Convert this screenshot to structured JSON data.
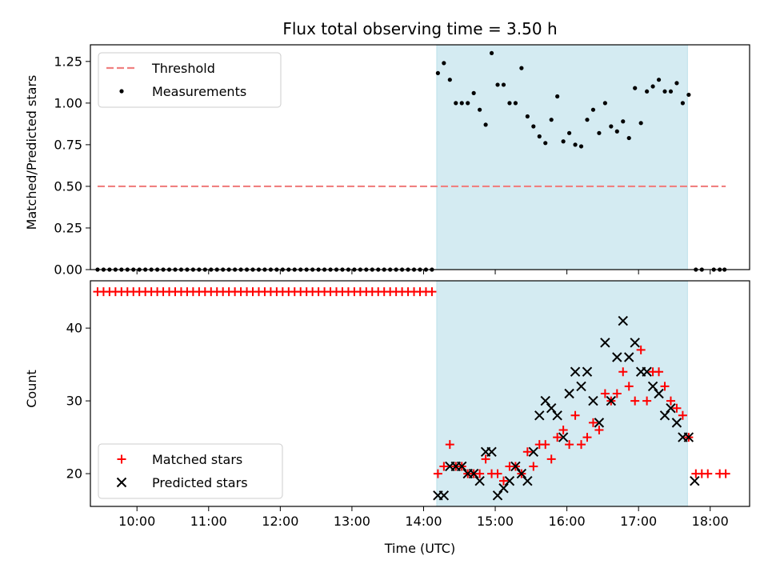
{
  "figure": {
    "title": "Flux total observing time = 3.50 h",
    "xlabel": "Time (UTC)",
    "x_ticks": [
      "10:00",
      "11:00",
      "12:00",
      "13:00",
      "14:00",
      "15:00",
      "16:00",
      "17:00",
      "18:00"
    ]
  },
  "chart_data": [
    {
      "type": "scatter",
      "panel": "top",
      "ylabel": "Matched/Predicted stars",
      "xlim": [
        "09:21",
        "18:33"
      ],
      "ylim": [
        0,
        1.35
      ],
      "y_ticks": [
        "0.00",
        "0.25",
        "0.50",
        "0.75",
        "1.00",
        "1.25"
      ],
      "shaded_region": [
        "14:11",
        "17:41"
      ],
      "legend": {
        "placement": "upper-left",
        "entries": [
          "Threshold",
          "Measurements"
        ]
      },
      "series": [
        {
          "name": "Threshold",
          "kind": "dashed-line",
          "color": "#f08080",
          "points": [
            [
              "09:27",
              0.5
            ],
            [
              "18:13",
              0.5
            ]
          ]
        },
        {
          "name": "Measurements",
          "kind": "dots",
          "color": "#000000",
          "points": [
            [
              "09:27",
              0
            ],
            [
              "09:32",
              0
            ],
            [
              "09:37",
              0
            ],
            [
              "09:42",
              0
            ],
            [
              "09:47",
              0
            ],
            [
              "09:52",
              0
            ],
            [
              "09:57",
              0
            ],
            [
              "10:02",
              0
            ],
            [
              "10:07",
              0
            ],
            [
              "10:12",
              0
            ],
            [
              "10:17",
              0
            ],
            [
              "10:22",
              0
            ],
            [
              "10:27",
              0
            ],
            [
              "10:32",
              0
            ],
            [
              "10:37",
              0
            ],
            [
              "10:42",
              0
            ],
            [
              "10:47",
              0
            ],
            [
              "10:52",
              0
            ],
            [
              "10:57",
              0
            ],
            [
              "11:02",
              0
            ],
            [
              "11:07",
              0
            ],
            [
              "11:12",
              0
            ],
            [
              "11:17",
              0
            ],
            [
              "11:22",
              0
            ],
            [
              "11:27",
              0
            ],
            [
              "11:32",
              0
            ],
            [
              "11:37",
              0
            ],
            [
              "11:42",
              0
            ],
            [
              "11:47",
              0
            ],
            [
              "11:52",
              0
            ],
            [
              "11:57",
              0
            ],
            [
              "12:02",
              0
            ],
            [
              "12:07",
              0
            ],
            [
              "12:12",
              0
            ],
            [
              "12:17",
              0
            ],
            [
              "12:22",
              0
            ],
            [
              "12:27",
              0
            ],
            [
              "12:32",
              0
            ],
            [
              "12:37",
              0
            ],
            [
              "12:42",
              0
            ],
            [
              "12:47",
              0
            ],
            [
              "12:52",
              0
            ],
            [
              "12:57",
              0
            ],
            [
              "13:02",
              0
            ],
            [
              "13:07",
              0
            ],
            [
              "13:12",
              0
            ],
            [
              "13:17",
              0
            ],
            [
              "13:22",
              0
            ],
            [
              "13:27",
              0
            ],
            [
              "13:32",
              0
            ],
            [
              "13:37",
              0
            ],
            [
              "13:42",
              0
            ],
            [
              "13:47",
              0
            ],
            [
              "13:52",
              0
            ],
            [
              "13:57",
              0
            ],
            [
              "14:02",
              0
            ],
            [
              "14:07",
              0
            ],
            [
              "14:12",
              1.18
            ],
            [
              "14:17",
              1.24
            ],
            [
              "14:22",
              1.14
            ],
            [
              "14:27",
              1.0
            ],
            [
              "14:32",
              1.0
            ],
            [
              "14:37",
              1.0
            ],
            [
              "14:42",
              1.06
            ],
            [
              "14:47",
              0.96
            ],
            [
              "14:52",
              0.87
            ],
            [
              "14:57",
              1.3
            ],
            [
              "15:02",
              1.11
            ],
            [
              "15:07",
              1.11
            ],
            [
              "15:12",
              1.0
            ],
            [
              "15:17",
              1.0
            ],
            [
              "15:22",
              1.21
            ],
            [
              "15:27",
              0.92
            ],
            [
              "15:32",
              0.86
            ],
            [
              "15:37",
              0.8
            ],
            [
              "15:42",
              0.76
            ],
            [
              "15:47",
              0.9
            ],
            [
              "15:52",
              1.04
            ],
            [
              "15:57",
              0.77
            ],
            [
              "16:02",
              0.82
            ],
            [
              "16:07",
              0.75
            ],
            [
              "16:12",
              0.74
            ],
            [
              "16:17",
              0.9
            ],
            [
              "16:22",
              0.96
            ],
            [
              "16:27",
              0.82
            ],
            [
              "16:32",
              1.0
            ],
            [
              "16:37",
              0.86
            ],
            [
              "16:42",
              0.83
            ],
            [
              "16:47",
              0.89
            ],
            [
              "16:52",
              0.79
            ],
            [
              "16:57",
              1.09
            ],
            [
              "17:02",
              0.88
            ],
            [
              "17:07",
              1.07
            ],
            [
              "17:12",
              1.1
            ],
            [
              "17:17",
              1.14
            ],
            [
              "17:22",
              1.07
            ],
            [
              "17:27",
              1.07
            ],
            [
              "17:32",
              1.12
            ],
            [
              "17:37",
              1.0
            ],
            [
              "17:42",
              1.05
            ],
            [
              "17:48",
              0
            ],
            [
              "17:53",
              0
            ],
            [
              "18:03",
              0
            ],
            [
              "18:08",
              0
            ],
            [
              "18:12",
              0
            ]
          ]
        }
      ]
    },
    {
      "type": "scatter",
      "panel": "bottom",
      "ylabel": "Count",
      "xlim": [
        "09:21",
        "18:33"
      ],
      "ylim": [
        15.5,
        46.5
      ],
      "y_ticks": [
        "20",
        "30",
        "40"
      ],
      "shaded_region": [
        "14:11",
        "17:41"
      ],
      "legend": {
        "placement": "lower-left",
        "entries": [
          "Matched stars",
          "Predicted stars"
        ]
      },
      "series": [
        {
          "name": "Matched stars",
          "kind": "plus",
          "color": "#ff0000",
          "points": [
            [
              "09:27",
              45
            ],
            [
              "09:32",
              45
            ],
            [
              "09:37",
              45
            ],
            [
              "09:42",
              45
            ],
            [
              "09:47",
              45
            ],
            [
              "09:52",
              45
            ],
            [
              "09:57",
              45
            ],
            [
              "10:02",
              45
            ],
            [
              "10:07",
              45
            ],
            [
              "10:12",
              45
            ],
            [
              "10:17",
              45
            ],
            [
              "10:22",
              45
            ],
            [
              "10:27",
              45
            ],
            [
              "10:32",
              45
            ],
            [
              "10:37",
              45
            ],
            [
              "10:42",
              45
            ],
            [
              "10:47",
              45
            ],
            [
              "10:52",
              45
            ],
            [
              "10:57",
              45
            ],
            [
              "11:02",
              45
            ],
            [
              "11:07",
              45
            ],
            [
              "11:12",
              45
            ],
            [
              "11:17",
              45
            ],
            [
              "11:22",
              45
            ],
            [
              "11:27",
              45
            ],
            [
              "11:32",
              45
            ],
            [
              "11:37",
              45
            ],
            [
              "11:42",
              45
            ],
            [
              "11:47",
              45
            ],
            [
              "11:52",
              45
            ],
            [
              "11:57",
              45
            ],
            [
              "12:02",
              45
            ],
            [
              "12:07",
              45
            ],
            [
              "12:12",
              45
            ],
            [
              "12:17",
              45
            ],
            [
              "12:22",
              45
            ],
            [
              "12:27",
              45
            ],
            [
              "12:32",
              45
            ],
            [
              "12:37",
              45
            ],
            [
              "12:42",
              45
            ],
            [
              "12:47",
              45
            ],
            [
              "12:52",
              45
            ],
            [
              "12:57",
              45
            ],
            [
              "13:02",
              45
            ],
            [
              "13:07",
              45
            ],
            [
              "13:12",
              45
            ],
            [
              "13:17",
              45
            ],
            [
              "13:22",
              45
            ],
            [
              "13:27",
              45
            ],
            [
              "13:32",
              45
            ],
            [
              "13:37",
              45
            ],
            [
              "13:42",
              45
            ],
            [
              "13:47",
              45
            ],
            [
              "13:52",
              45
            ],
            [
              "13:57",
              45
            ],
            [
              "14:02",
              45
            ],
            [
              "14:07",
              45
            ],
            [
              "14:12",
              20
            ],
            [
              "14:17",
              21
            ],
            [
              "14:22",
              24
            ],
            [
              "14:27",
              21
            ],
            [
              "14:32",
              21
            ],
            [
              "14:37",
              20
            ],
            [
              "14:42",
              20
            ],
            [
              "14:47",
              20
            ],
            [
              "14:52",
              22
            ],
            [
              "14:57",
              20
            ],
            [
              "15:02",
              20
            ],
            [
              "15:07",
              19
            ],
            [
              "15:12",
              21
            ],
            [
              "15:17",
              21
            ],
            [
              "15:22",
              20
            ],
            [
              "15:27",
              23
            ],
            [
              "15:32",
              21
            ],
            [
              "15:37",
              24
            ],
            [
              "15:42",
              24
            ],
            [
              "15:47",
              22
            ],
            [
              "15:52",
              25
            ],
            [
              "15:57",
              26
            ],
            [
              "16:02",
              24
            ],
            [
              "16:07",
              28
            ],
            [
              "16:12",
              24
            ],
            [
              "16:17",
              25
            ],
            [
              "16:22",
              27
            ],
            [
              "16:27",
              26
            ],
            [
              "16:32",
              31
            ],
            [
              "16:37",
              30
            ],
            [
              "16:42",
              31
            ],
            [
              "16:47",
              34
            ],
            [
              "16:52",
              32
            ],
            [
              "16:57",
              30
            ],
            [
              "17:02",
              37
            ],
            [
              "17:07",
              30
            ],
            [
              "17:12",
              34
            ],
            [
              "17:17",
              34
            ],
            [
              "17:22",
              32
            ],
            [
              "17:27",
              30
            ],
            [
              "17:32",
              29
            ],
            [
              "17:37",
              28
            ],
            [
              "17:42",
              25
            ],
            [
              "17:48",
              20
            ],
            [
              "17:53",
              20
            ],
            [
              "17:58",
              20
            ],
            [
              "18:08",
              20
            ],
            [
              "18:13",
              20
            ]
          ]
        },
        {
          "name": "Predicted stars",
          "kind": "x",
          "color": "#000000",
          "points": [
            [
              "14:12",
              17
            ],
            [
              "14:17",
              17
            ],
            [
              "14:22",
              21
            ],
            [
              "14:27",
              21
            ],
            [
              "14:32",
              21
            ],
            [
              "14:37",
              20
            ],
            [
              "14:42",
              20
            ],
            [
              "14:47",
              19
            ],
            [
              "14:52",
              23
            ],
            [
              "14:57",
              23
            ],
            [
              "15:02",
              17
            ],
            [
              "15:07",
              18
            ],
            [
              "15:12",
              19
            ],
            [
              "15:17",
              21
            ],
            [
              "15:22",
              20
            ],
            [
              "15:27",
              19
            ],
            [
              "15:32",
              23
            ],
            [
              "15:37",
              28
            ],
            [
              "15:42",
              30
            ],
            [
              "15:47",
              29
            ],
            [
              "15:52",
              28
            ],
            [
              "15:57",
              25
            ],
            [
              "16:02",
              31
            ],
            [
              "16:07",
              34
            ],
            [
              "16:12",
              32
            ],
            [
              "16:17",
              34
            ],
            [
              "16:22",
              30
            ],
            [
              "16:27",
              27
            ],
            [
              "16:32",
              38
            ],
            [
              "16:37",
              30
            ],
            [
              "16:42",
              36
            ],
            [
              "16:47",
              41
            ],
            [
              "16:52",
              36
            ],
            [
              "16:57",
              38
            ],
            [
              "17:02",
              34
            ],
            [
              "17:07",
              34
            ],
            [
              "17:12",
              32
            ],
            [
              "17:17",
              31
            ],
            [
              "17:22",
              28
            ],
            [
              "17:27",
              29
            ],
            [
              "17:32",
              27
            ],
            [
              "17:37",
              25
            ],
            [
              "17:42",
              25
            ],
            [
              "17:47",
              19
            ]
          ]
        }
      ]
    }
  ]
}
